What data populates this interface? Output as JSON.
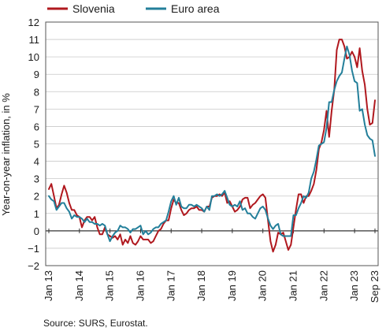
{
  "chart_data": {
    "type": "line",
    "ylabel": "Year-on-year inflation, in %",
    "ylim": [
      -2,
      12
    ],
    "yticks": [
      -2,
      -1,
      0,
      1,
      2,
      3,
      4,
      5,
      6,
      7,
      8,
      9,
      10,
      11,
      12
    ],
    "xlim": [
      "2013-01",
      "2023-09"
    ],
    "xticks": [
      {
        "label": "Jan 13",
        "date": "2013-01"
      },
      {
        "label": "Jan 14",
        "date": "2014-01"
      },
      {
        "label": "Jan 15",
        "date": "2015-01"
      },
      {
        "label": "Jan 16",
        "date": "2016-01"
      },
      {
        "label": "Jan 17",
        "date": "2017-01"
      },
      {
        "label": "Jan 18",
        "date": "2018-01"
      },
      {
        "label": "Jan 19",
        "date": "2019-01"
      },
      {
        "label": "Jan 20",
        "date": "2020-01"
      },
      {
        "label": "Jan 21",
        "date": "2021-01"
      },
      {
        "label": "Jan 22",
        "date": "2022-01"
      },
      {
        "label": "Jan 23",
        "date": "2023-01"
      },
      {
        "label": "Sep 23",
        "date": "2023-09"
      }
    ],
    "grid": true,
    "legend_position": "top",
    "source": "Source: SURS, Eurostat.",
    "series": [
      {
        "name": "Slovenia",
        "color": "#b0181e",
        "points": [
          [
            "2013-01",
            2.4
          ],
          [
            "2013-02",
            2.7
          ],
          [
            "2013-03",
            2.0
          ],
          [
            "2013-04",
            1.3
          ],
          [
            "2013-05",
            1.5
          ],
          [
            "2013-06",
            2.1
          ],
          [
            "2013-07",
            2.6
          ],
          [
            "2013-08",
            2.2
          ],
          [
            "2013-09",
            1.6
          ],
          [
            "2013-10",
            1.2
          ],
          [
            "2013-11",
            1.2
          ],
          [
            "2013-12",
            0.9
          ],
          [
            "2014-01",
            0.8
          ],
          [
            "2014-02",
            0.2
          ],
          [
            "2014-03",
            0.6
          ],
          [
            "2014-04",
            0.8
          ],
          [
            "2014-05",
            0.8
          ],
          [
            "2014-06",
            0.6
          ],
          [
            "2014-07",
            0.8
          ],
          [
            "2014-08",
            0.2
          ],
          [
            "2014-09",
            -0.2
          ],
          [
            "2014-10",
            -0.2
          ],
          [
            "2014-11",
            0.2
          ],
          [
            "2014-12",
            -0.2
          ],
          [
            "2015-01",
            -0.3
          ],
          [
            "2015-02",
            -0.4
          ],
          [
            "2015-03",
            -0.3
          ],
          [
            "2015-04",
            -0.5
          ],
          [
            "2015-05",
            -0.2
          ],
          [
            "2015-06",
            -0.8
          ],
          [
            "2015-07",
            -0.5
          ],
          [
            "2015-08",
            -0.7
          ],
          [
            "2015-09",
            -0.3
          ],
          [
            "2015-10",
            -0.7
          ],
          [
            "2015-11",
            -0.8
          ],
          [
            "2015-12",
            -0.6
          ],
          [
            "2016-01",
            -0.3
          ],
          [
            "2016-02",
            -0.5
          ],
          [
            "2016-03",
            -0.5
          ],
          [
            "2016-04",
            -0.5
          ],
          [
            "2016-05",
            -0.7
          ],
          [
            "2016-06",
            -0.6
          ],
          [
            "2016-07",
            -0.3
          ],
          [
            "2016-08",
            0.0
          ],
          [
            "2016-09",
            0.1
          ],
          [
            "2016-10",
            0.4
          ],
          [
            "2016-11",
            0.6
          ],
          [
            "2016-12",
            0.6
          ],
          [
            "2017-01",
            1.3
          ],
          [
            "2017-02",
            1.8
          ],
          [
            "2017-03",
            1.6
          ],
          [
            "2017-04",
            1.6
          ],
          [
            "2017-05",
            1.2
          ],
          [
            "2017-06",
            0.9
          ],
          [
            "2017-07",
            1.0
          ],
          [
            "2017-08",
            1.2
          ],
          [
            "2017-09",
            1.3
          ],
          [
            "2017-10",
            1.3
          ],
          [
            "2017-11",
            1.4
          ],
          [
            "2017-12",
            1.2
          ],
          [
            "2018-01",
            1.2
          ],
          [
            "2018-02",
            1.1
          ],
          [
            "2018-03",
            1.4
          ],
          [
            "2018-04",
            1.4
          ],
          [
            "2018-05",
            1.9
          ],
          [
            "2018-06",
            2.0
          ],
          [
            "2018-07",
            2.0
          ],
          [
            "2018-08",
            2.1
          ],
          [
            "2018-09",
            2.0
          ],
          [
            "2018-10",
            2.2
          ],
          [
            "2018-11",
            1.6
          ],
          [
            "2018-12",
            1.7
          ],
          [
            "2019-01",
            1.4
          ],
          [
            "2019-02",
            1.1
          ],
          [
            "2019-03",
            1.2
          ],
          [
            "2019-04",
            1.4
          ],
          [
            "2019-05",
            1.8
          ],
          [
            "2019-06",
            1.9
          ],
          [
            "2019-07",
            1.9
          ],
          [
            "2019-08",
            1.3
          ],
          [
            "2019-09",
            1.5
          ],
          [
            "2019-10",
            1.6
          ],
          [
            "2019-11",
            1.8
          ],
          [
            "2019-12",
            2.0
          ],
          [
            "2020-01",
            2.1
          ],
          [
            "2020-02",
            1.9
          ],
          [
            "2020-03",
            0.6
          ],
          [
            "2020-04",
            -0.6
          ],
          [
            "2020-05",
            -1.2
          ],
          [
            "2020-06",
            -0.8
          ],
          [
            "2020-07",
            -0.1
          ],
          [
            "2020-08",
            -0.2
          ],
          [
            "2020-09",
            -0.1
          ],
          [
            "2020-10",
            -0.6
          ],
          [
            "2020-11",
            -1.1
          ],
          [
            "2020-12",
            -0.8
          ],
          [
            "2021-01",
            0.2
          ],
          [
            "2021-02",
            1.2
          ],
          [
            "2021-03",
            2.1
          ],
          [
            "2021-04",
            2.1
          ],
          [
            "2021-05",
            1.6
          ],
          [
            "2021-06",
            2.0
          ],
          [
            "2021-07",
            2.0
          ],
          [
            "2021-08",
            2.3
          ],
          [
            "2021-09",
            2.7
          ],
          [
            "2021-10",
            3.5
          ],
          [
            "2021-11",
            4.7
          ],
          [
            "2021-12",
            5.1
          ],
          [
            "2022-01",
            5.8
          ],
          [
            "2022-02",
            6.9
          ],
          [
            "2022-03",
            5.4
          ],
          [
            "2022-04",
            6.9
          ],
          [
            "2022-05",
            8.1
          ],
          [
            "2022-06",
            10.4
          ],
          [
            "2022-07",
            11.0
          ],
          [
            "2022-08",
            11.0
          ],
          [
            "2022-09",
            10.6
          ],
          [
            "2022-10",
            9.9
          ],
          [
            "2022-11",
            10.0
          ],
          [
            "2022-12",
            10.3
          ],
          [
            "2023-01",
            10.0
          ],
          [
            "2023-02",
            9.4
          ],
          [
            "2023-03",
            10.5
          ],
          [
            "2023-04",
            9.2
          ],
          [
            "2023-05",
            8.4
          ],
          [
            "2023-06",
            7.0
          ],
          [
            "2023-07",
            6.1
          ],
          [
            "2023-08",
            6.2
          ],
          [
            "2023-09",
            7.5
          ]
        ]
      },
      {
        "name": "Euro area",
        "color": "#237f9a",
        "points": [
          [
            "2013-01",
            2.0
          ],
          [
            "2013-02",
            1.8
          ],
          [
            "2013-03",
            1.7
          ],
          [
            "2013-04",
            1.2
          ],
          [
            "2013-05",
            1.4
          ],
          [
            "2013-06",
            1.6
          ],
          [
            "2013-07",
            1.6
          ],
          [
            "2013-08",
            1.3
          ],
          [
            "2013-09",
            1.1
          ],
          [
            "2013-10",
            0.7
          ],
          [
            "2013-11",
            0.9
          ],
          [
            "2013-12",
            0.8
          ],
          [
            "2014-01",
            0.8
          ],
          [
            "2014-02",
            0.7
          ],
          [
            "2014-03",
            0.5
          ],
          [
            "2014-04",
            0.7
          ],
          [
            "2014-05",
            0.5
          ],
          [
            "2014-06",
            0.5
          ],
          [
            "2014-07",
            0.4
          ],
          [
            "2014-08",
            0.4
          ],
          [
            "2014-09",
            0.3
          ],
          [
            "2014-10",
            0.4
          ],
          [
            "2014-11",
            0.3
          ],
          [
            "2014-12",
            -0.2
          ],
          [
            "2015-01",
            -0.6
          ],
          [
            "2015-02",
            -0.3
          ],
          [
            "2015-03",
            -0.1
          ],
          [
            "2015-04",
            0.0
          ],
          [
            "2015-05",
            0.3
          ],
          [
            "2015-06",
            0.2
          ],
          [
            "2015-07",
            0.2
          ],
          [
            "2015-08",
            0.1
          ],
          [
            "2015-09",
            -0.1
          ],
          [
            "2015-10",
            0.1
          ],
          [
            "2015-11",
            0.1
          ],
          [
            "2015-12",
            0.2
          ],
          [
            "2016-01",
            0.3
          ],
          [
            "2016-02",
            -0.2
          ],
          [
            "2016-03",
            0.0
          ],
          [
            "2016-04",
            -0.2
          ],
          [
            "2016-05",
            -0.1
          ],
          [
            "2016-06",
            0.1
          ],
          [
            "2016-07",
            0.2
          ],
          [
            "2016-08",
            0.2
          ],
          [
            "2016-09",
            0.4
          ],
          [
            "2016-10",
            0.5
          ],
          [
            "2016-11",
            0.6
          ],
          [
            "2016-12",
            1.1
          ],
          [
            "2017-01",
            1.7
          ],
          [
            "2017-02",
            2.0
          ],
          [
            "2017-03",
            1.5
          ],
          [
            "2017-04",
            1.9
          ],
          [
            "2017-05",
            1.4
          ],
          [
            "2017-06",
            1.3
          ],
          [
            "2017-07",
            1.3
          ],
          [
            "2017-08",
            1.5
          ],
          [
            "2017-09",
            1.5
          ],
          [
            "2017-10",
            1.4
          ],
          [
            "2017-11",
            1.5
          ],
          [
            "2017-12",
            1.4
          ],
          [
            "2018-01",
            1.3
          ],
          [
            "2018-02",
            1.1
          ],
          [
            "2018-03",
            1.4
          ],
          [
            "2018-04",
            1.2
          ],
          [
            "2018-05",
            2.0
          ],
          [
            "2018-06",
            2.0
          ],
          [
            "2018-07",
            2.1
          ],
          [
            "2018-08",
            2.0
          ],
          [
            "2018-09",
            2.1
          ],
          [
            "2018-10",
            2.3
          ],
          [
            "2018-11",
            1.9
          ],
          [
            "2018-12",
            1.5
          ],
          [
            "2019-01",
            1.4
          ],
          [
            "2019-02",
            1.5
          ],
          [
            "2019-03",
            1.4
          ],
          [
            "2019-04",
            1.7
          ],
          [
            "2019-05",
            1.2
          ],
          [
            "2019-06",
            1.3
          ],
          [
            "2019-07",
            1.0
          ],
          [
            "2019-08",
            1.0
          ],
          [
            "2019-09",
            0.8
          ],
          [
            "2019-10",
            0.7
          ],
          [
            "2019-11",
            1.0
          ],
          [
            "2019-12",
            1.3
          ],
          [
            "2020-01",
            1.4
          ],
          [
            "2020-02",
            1.2
          ],
          [
            "2020-03",
            0.7
          ],
          [
            "2020-04",
            0.3
          ],
          [
            "2020-05",
            0.1
          ],
          [
            "2020-06",
            0.3
          ],
          [
            "2020-07",
            0.4
          ],
          [
            "2020-08",
            -0.2
          ],
          [
            "2020-09",
            -0.3
          ],
          [
            "2020-10",
            -0.3
          ],
          [
            "2020-11",
            -0.3
          ],
          [
            "2020-12",
            -0.3
          ],
          [
            "2021-01",
            0.9
          ],
          [
            "2021-02",
            0.9
          ],
          [
            "2021-03",
            1.3
          ],
          [
            "2021-04",
            1.6
          ],
          [
            "2021-05",
            2.0
          ],
          [
            "2021-06",
            1.9
          ],
          [
            "2021-07",
            2.2
          ],
          [
            "2021-08",
            3.0
          ],
          [
            "2021-09",
            3.4
          ],
          [
            "2021-10",
            4.1
          ],
          [
            "2021-11",
            4.9
          ],
          [
            "2021-12",
            5.0
          ],
          [
            "2022-01",
            5.1
          ],
          [
            "2022-02",
            5.9
          ],
          [
            "2022-03",
            7.4
          ],
          [
            "2022-04",
            7.4
          ],
          [
            "2022-05",
            8.1
          ],
          [
            "2022-06",
            8.6
          ],
          [
            "2022-07",
            8.9
          ],
          [
            "2022-08",
            9.1
          ],
          [
            "2022-09",
            9.9
          ],
          [
            "2022-10",
            10.6
          ],
          [
            "2022-11",
            10.1
          ],
          [
            "2022-12",
            9.2
          ],
          [
            "2023-01",
            8.6
          ],
          [
            "2023-02",
            8.5
          ],
          [
            "2023-03",
            6.9
          ],
          [
            "2023-04",
            7.0
          ],
          [
            "2023-05",
            6.1
          ],
          [
            "2023-06",
            5.5
          ],
          [
            "2023-07",
            5.3
          ],
          [
            "2023-08",
            5.2
          ],
          [
            "2023-09",
            4.3
          ]
        ]
      }
    ]
  }
}
